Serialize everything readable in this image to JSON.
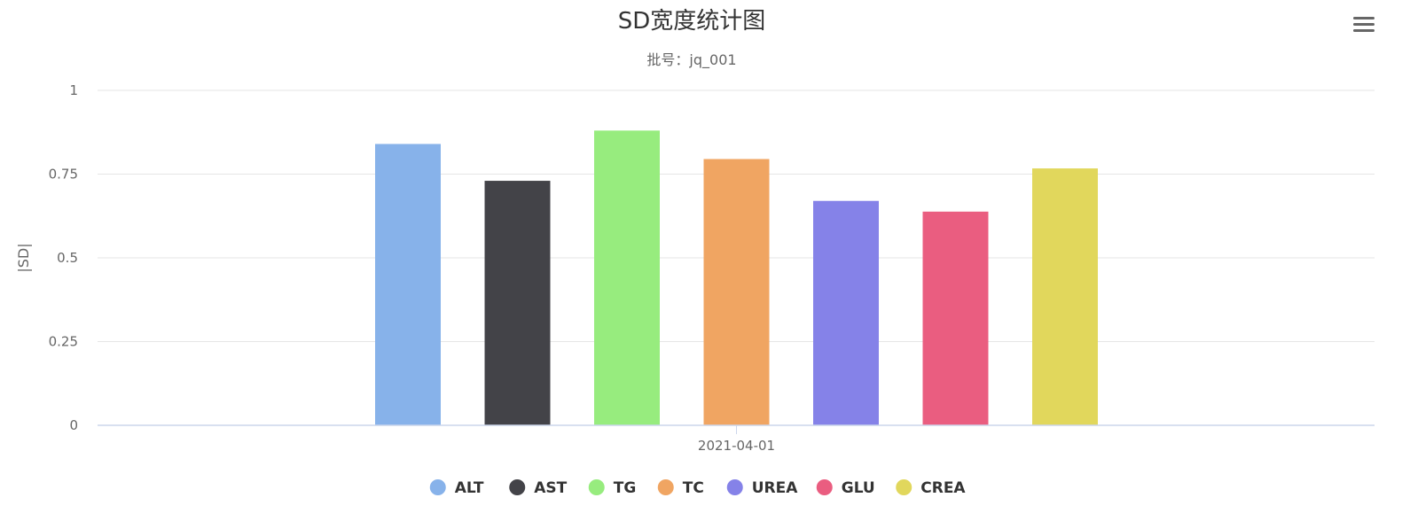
{
  "title": "SD宽度统计图",
  "subtitle": "批号：jq_001",
  "menu_icon": "hamburger-menu-icon",
  "chart_data": {
    "type": "bar",
    "title": "SD宽度统计图",
    "subtitle": "批号：jq_001",
    "xlabel": "",
    "ylabel": "|SD|",
    "categories": [
      "2021-04-01"
    ],
    "ylim": [
      0,
      1
    ],
    "yticks": [
      0,
      0.25,
      0.5,
      0.75,
      1
    ],
    "ytick_labels": [
      "0",
      "0.25",
      "0.5",
      "0.75",
      "1"
    ],
    "grid": true,
    "legend_position": "bottom-center",
    "series": [
      {
        "name": "ALT",
        "values": [
          0.84
        ],
        "color": "#87b2ea"
      },
      {
        "name": "AST",
        "values": [
          0.73
        ],
        "color": "#434348"
      },
      {
        "name": "TG",
        "values": [
          0.88
        ],
        "color": "#97ec7e"
      },
      {
        "name": "TC",
        "values": [
          0.795
        ],
        "color": "#f0a562"
      },
      {
        "name": "UREA",
        "values": [
          0.67
        ],
        "color": "#8582e8"
      },
      {
        "name": "GLU",
        "values": [
          0.638
        ],
        "color": "#ea5d80"
      },
      {
        "name": "CREA",
        "values": [
          0.767
        ],
        "color": "#e1d75c"
      }
    ]
  }
}
